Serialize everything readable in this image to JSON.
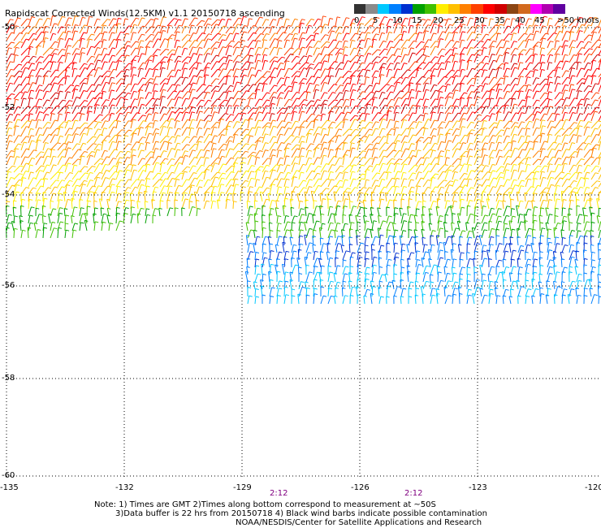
{
  "title": "Rapidscat Corrected Winds(12.5KM) v1.1 20150718 ascending",
  "legend": {
    "colors": [
      "#333333",
      "#8a8a8a",
      "#00c8ff",
      "#0080ff",
      "#0030d0",
      "#00a000",
      "#40c000",
      "#ffee00",
      "#ffc000",
      "#ff8000",
      "#ff4000",
      "#ff0000",
      "#d00000",
      "#8b4513",
      "#d2691e",
      "#ff00ff",
      "#b000b0",
      "#6000a0"
    ],
    "tick_labels": [
      "0",
      "5",
      "10",
      "15",
      "20",
      "25",
      "30",
      "35",
      "40",
      "45",
      ">50 knots"
    ]
  },
  "axes": {
    "lon_labels": [
      "-135",
      "-132",
      "-129",
      "-126",
      "-123",
      "-120"
    ],
    "lat_labels": [
      "-50",
      "-52",
      "-54",
      "-56",
      "-58",
      "-60"
    ]
  },
  "time_labels": [
    "2:12",
    "2:12"
  ],
  "notes": [
    "Note: 1) Times are GMT 2)Times along bottom correspond to measurement at ~50S",
    "3)Data buffer is 22 hrs from 20150718 4) Black wind barbs indicate possible contamination",
    "NOAA/NESDIS/Center for Satellite Applications and Research"
  ]
}
